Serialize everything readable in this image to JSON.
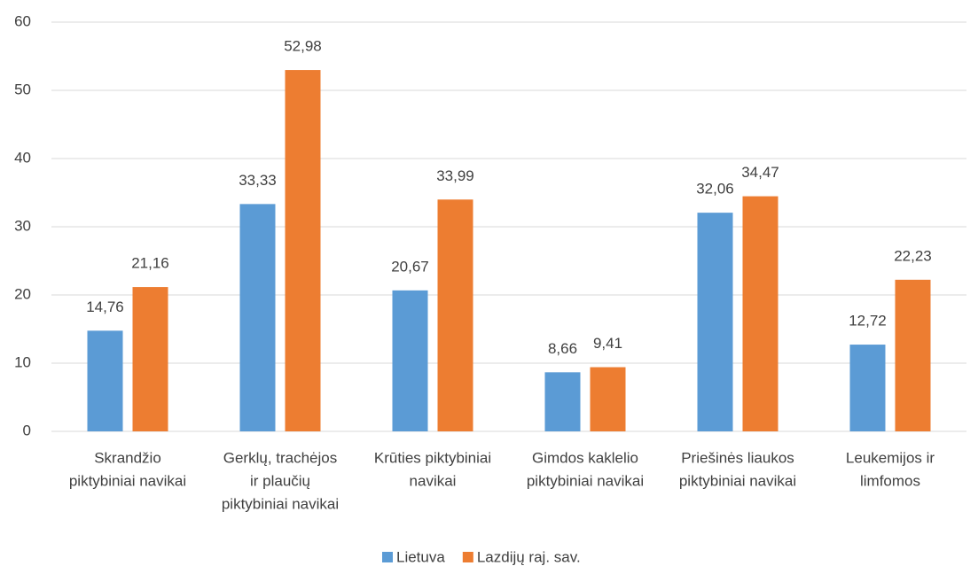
{
  "chart_data": {
    "type": "bar",
    "categories": [
      [
        "Skrandžio",
        "piktybiniai navikai"
      ],
      [
        "Gerklų, trachėjos",
        "ir plaučių",
        "piktybiniai navikai"
      ],
      [
        "Krūties piktybiniai",
        "navikai"
      ],
      [
        "Gimdos kaklelio",
        "piktybiniai navikai"
      ],
      [
        "Priešinės liaukos",
        "piktybiniai navikai"
      ],
      [
        "Leukemijos ir",
        "limfomos"
      ]
    ],
    "series": [
      {
        "name": "Lietuva",
        "color": "#5b9bd5",
        "values": [
          14.76,
          33.33,
          20.67,
          8.66,
          32.06,
          12.72
        ],
        "value_labels": [
          "14,76",
          "33,33",
          "20,67",
          "8,66",
          "32,06",
          "12,72"
        ]
      },
      {
        "name": "Lazdijų raj. sav.",
        "color": "#ed7d31",
        "values": [
          21.16,
          52.98,
          33.99,
          9.41,
          34.47,
          22.23
        ],
        "value_labels": [
          "21,16",
          "52,98",
          "33,99",
          "9,41",
          "34,47",
          "22,23"
        ]
      }
    ],
    "ylim": [
      0,
      60
    ],
    "yticks": [
      0,
      10,
      20,
      30,
      40,
      50,
      60
    ],
    "grid": true,
    "legend": "bottom"
  }
}
